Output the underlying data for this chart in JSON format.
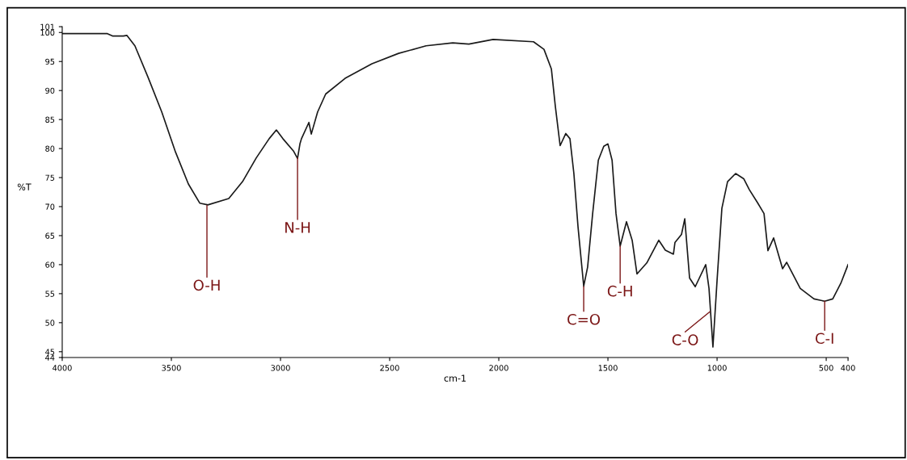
{
  "chart_data": {
    "type": "line",
    "xlabel": "cm-1",
    "ylabel": "%T",
    "xlim": [
      4000,
      400
    ],
    "ylim": [
      44,
      101
    ],
    "xticks": [
      4000,
      3500,
      3000,
      2500,
      2000,
      1500,
      1000,
      500,
      400
    ],
    "yticks": [
      44,
      45,
      50,
      55,
      60,
      65,
      70,
      75,
      80,
      85,
      90,
      95,
      100,
      101
    ],
    "grid": false,
    "legend": false,
    "marker": "none",
    "line_style": "solid",
    "series": [
      {
        "color": "#1a1a1a",
        "x": [
          4000,
          3793,
          3770,
          3720,
          3704,
          3667,
          3607,
          3544,
          3481,
          3422,
          3370,
          3333,
          3237,
          3174,
          3111,
          3052,
          3019,
          2989,
          2941,
          2922,
          2911,
          2904,
          2870,
          2859,
          2830,
          2793,
          2704,
          2581,
          2459,
          2333,
          2211,
          2137,
          2026,
          1841,
          1793,
          1759,
          1741,
          1719,
          1693,
          1674,
          1656,
          1637,
          1611,
          1593,
          1570,
          1544,
          1519,
          1500,
          1481,
          1463,
          1444,
          1415,
          1389,
          1367,
          1322,
          1267,
          1237,
          1200,
          1193,
          1163,
          1148,
          1126,
          1100,
          1052,
          1037,
          1019,
          1000,
          978,
          952,
          915,
          878,
          852,
          815,
          785,
          767,
          741,
          700,
          681,
          619,
          556,
          507,
          470,
          433,
          400
        ],
        "values": [
          99.8,
          99.8,
          99.4,
          99.4,
          99.5,
          97.7,
          92.3,
          86.3,
          79.4,
          73.9,
          70.6,
          70.3,
          71.4,
          74.3,
          78.4,
          81.7,
          83.2,
          81.7,
          79.6,
          78.3,
          80.8,
          81.7,
          84.5,
          82.5,
          86.3,
          89.4,
          92.1,
          94.6,
          96.4,
          97.7,
          98.2,
          98.0,
          98.8,
          98.4,
          97.1,
          93.7,
          87.3,
          80.5,
          82.6,
          81.7,
          75.7,
          66.5,
          56.3,
          59.6,
          68.8,
          78.0,
          80.4,
          80.8,
          78.0,
          68.8,
          63.2,
          67.4,
          64.2,
          58.4,
          60.3,
          64.2,
          62.5,
          61.8,
          63.8,
          65.2,
          67.9,
          57.7,
          56.2,
          60.0,
          55.9,
          45.8,
          57.3,
          69.7,
          74.3,
          75.7,
          74.8,
          72.9,
          70.7,
          68.8,
          62.4,
          64.6,
          59.3,
          60.4,
          55.9,
          54.1,
          53.7,
          54.1,
          56.8,
          60.0
        ]
      }
    ],
    "annotations": [
      {
        "text": "O-H",
        "x": 3337,
        "y": 70.2
      },
      {
        "text": "N-H",
        "x": 2922,
        "y": 78.4
      },
      {
        "text": "C=O",
        "x": 1611,
        "y": 56.2
      },
      {
        "text": "C-H",
        "x": 1444,
        "y": 63.2
      },
      {
        "text": "C-O",
        "x": 1033,
        "y": 51.9
      },
      {
        "text": "C-I",
        "x": 507,
        "y": 53.7
      }
    ]
  }
}
